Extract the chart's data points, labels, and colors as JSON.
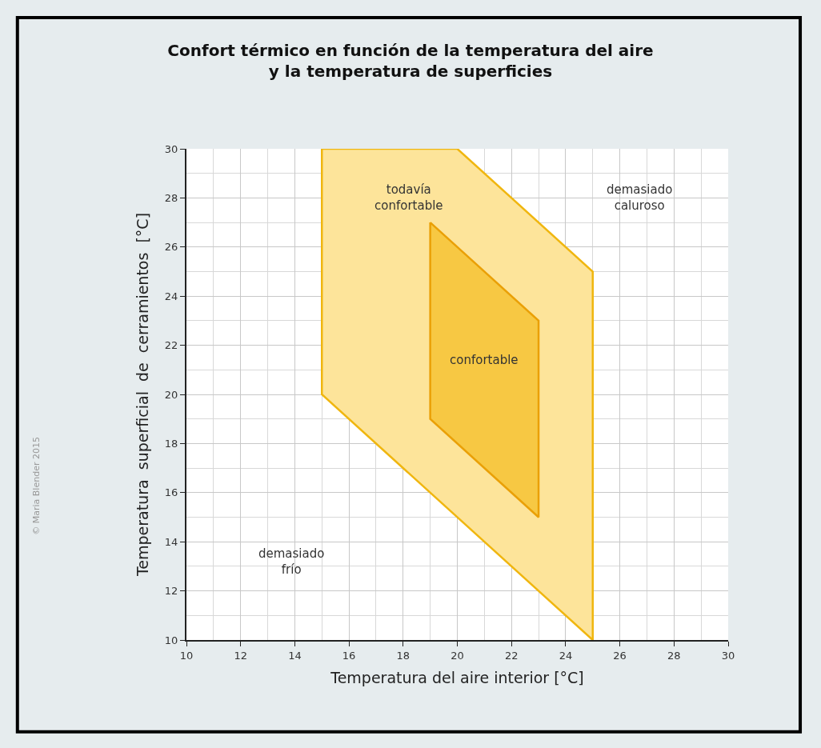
{
  "chart_data": {
    "type": "area",
    "title": "Confort térmico en función de la temperatura del aire\ny la temperatura de superficies",
    "xlabel": "Temperatura del aire interior [°C]",
    "ylabel": "Temperatura  superficial  de  cerramientos  [°C]",
    "series": [
      {
        "color": "#fde49a",
        "x": [
          15,
          20,
          25,
          25,
          15,
          15
        ],
        "values": [
          30,
          30,
          25,
          10,
          20,
          30
        ]
      },
      {
        "color": "#f7c843",
        "x": [
          19,
          23,
          23,
          19,
          19
        ],
        "values": [
          27,
          23,
          15,
          19,
          27
        ]
      }
    ],
    "xlim": [
      10,
      30
    ],
    "ylim": [
      10,
      30
    ],
    "xticks": [
      10,
      12,
      14,
      16,
      18,
      20,
      22,
      24,
      26,
      28,
      30
    ],
    "yticks": [
      10,
      12,
      14,
      16,
      18,
      20,
      22,
      24,
      26,
      28,
      30
    ],
    "grid": true,
    "annotations": [
      "todavía\nconfortable",
      "confortable",
      "demasiado\ncaluroso",
      "demasiado\nfrío",
      "© Maria Blender 2015"
    ]
  }
}
